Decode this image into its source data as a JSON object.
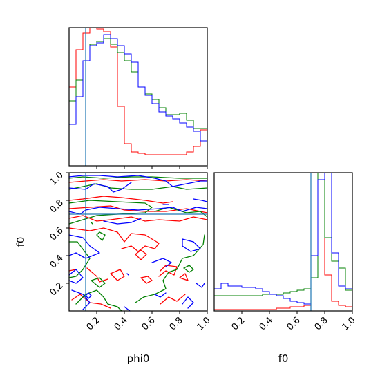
{
  "chart_data": {
    "type": "corner",
    "parameters": [
      "phi0",
      "f0"
    ],
    "xlabel_phi0": "phi0",
    "xlabel_f0": "f0",
    "ylabel_f0": "f0",
    "axis_range": [
      0,
      1
    ],
    "ticks": [
      0.2,
      0.4,
      0.6,
      0.8,
      1.0
    ],
    "tick_labels": [
      "0.2",
      "0.4",
      "0.6",
      "0.8",
      "1.0"
    ],
    "truth": {
      "phi0": 0.12,
      "f0": 0.7,
      "color": "#1f77b4"
    },
    "colors": {
      "red": "#ff0000",
      "green": "#008000",
      "blue": "#0000ff",
      "truth": "#1f77b4"
    },
    "hist_phi0": {
      "bins": 20,
      "red": [
        0.57,
        0.84,
        0.96,
        1.0,
        0.99,
        0.97,
        0.86,
        0.43,
        0.16,
        0.1,
        0.09,
        0.08,
        0.08,
        0.08,
        0.08,
        0.08,
        0.08,
        0.1,
        0.14,
        0.26
      ],
      "green": [
        0.47,
        0.62,
        0.76,
        0.88,
        0.9,
        0.92,
        0.88,
        0.82,
        0.76,
        0.68,
        0.57,
        0.52,
        0.48,
        0.42,
        0.37,
        0.37,
        0.38,
        0.33,
        0.27,
        0.27
      ],
      "blue": [
        0.3,
        0.5,
        0.76,
        0.87,
        0.89,
        0.95,
        0.92,
        0.87,
        0.81,
        0.75,
        0.57,
        0.51,
        0.45,
        0.39,
        0.36,
        0.34,
        0.31,
        0.28,
        0.25,
        0.18
      ]
    },
    "hist_f0": {
      "bins": 20,
      "red": [
        0.01,
        0.01,
        0.01,
        0.01,
        0.01,
        0.01,
        0.01,
        0.01,
        0.01,
        0.02,
        0.02,
        0.03,
        0.03,
        0.04,
        1.0,
        1.0,
        0.26,
        0.07,
        0.04,
        0.03
      ],
      "green": [
        0.11,
        0.11,
        0.11,
        0.11,
        0.11,
        0.11,
        0.11,
        0.12,
        0.12,
        0.12,
        0.13,
        0.14,
        0.15,
        0.16,
        0.24,
        1.0,
        0.53,
        0.36,
        0.31,
        0.15
      ],
      "blue": [
        0.16,
        0.2,
        0.18,
        0.18,
        0.17,
        0.17,
        0.16,
        0.14,
        0.12,
        0.11,
        0.09,
        0.07,
        0.06,
        0.05,
        0.4,
        0.95,
        1.0,
        0.42,
        0.18,
        0.16
      ]
    },
    "contours": {
      "red": [
        [
          [
            0.0,
            0.93
          ],
          [
            0.12,
            0.94
          ],
          [
            0.25,
            0.95
          ],
          [
            0.38,
            0.94
          ],
          [
            0.55,
            0.95
          ],
          [
            0.7,
            0.94
          ],
          [
            0.85,
            0.95
          ],
          [
            1.0,
            0.94
          ]
        ],
        [
          [
            0.0,
            0.8
          ],
          [
            0.1,
            0.81
          ],
          [
            0.25,
            0.83
          ],
          [
            0.38,
            0.82
          ],
          [
            0.55,
            0.8
          ],
          [
            0.68,
            0.78
          ],
          [
            0.75,
            0.79
          ]
        ],
        [
          [
            0.0,
            0.74
          ],
          [
            0.15,
            0.75
          ],
          [
            0.3,
            0.76
          ],
          [
            0.4,
            0.73
          ],
          [
            0.55,
            0.72
          ],
          [
            0.7,
            0.72
          ],
          [
            0.85,
            0.74
          ],
          [
            1.0,
            0.71
          ]
        ],
        [
          [
            0.0,
            0.67
          ],
          [
            0.1,
            0.69
          ],
          [
            0.2,
            0.65
          ],
          [
            0.3,
            0.66
          ],
          [
            0.45,
            0.68
          ],
          [
            0.55,
            0.65
          ],
          [
            0.65,
            0.66
          ],
          [
            0.8,
            0.65
          ],
          [
            0.9,
            0.68
          ],
          [
            1.0,
            0.66
          ]
        ],
        [
          [
            0.0,
            0.6
          ],
          [
            0.15,
            0.58
          ],
          [
            0.25,
            0.6
          ],
          [
            0.35,
            0.57
          ],
          [
            0.4,
            0.5
          ],
          [
            0.45,
            0.56
          ],
          [
            0.55,
            0.55
          ],
          [
            0.65,
            0.49
          ],
          [
            0.62,
            0.45
          ],
          [
            0.55,
            0.47
          ],
          [
            0.5,
            0.43
          ],
          [
            0.45,
            0.47
          ],
          [
            0.38,
            0.45
          ]
        ],
        [
          [
            0.3,
            0.27
          ],
          [
            0.35,
            0.22
          ],
          [
            0.4,
            0.25
          ],
          [
            0.37,
            0.3
          ],
          [
            0.3,
            0.27
          ]
        ],
        [
          [
            0.13,
            0.31
          ],
          [
            0.2,
            0.25
          ],
          [
            0.22,
            0.21
          ],
          [
            0.28,
            0.23
          ]
        ],
        [
          [
            0.02,
            0.08
          ],
          [
            0.08,
            0.12
          ],
          [
            0.15,
            0.06
          ],
          [
            0.23,
            0.05
          ],
          [
            0.3,
            0.02
          ]
        ],
        [
          [
            0.52,
            0.24
          ],
          [
            0.56,
            0.2
          ],
          [
            0.6,
            0.22
          ],
          [
            0.57,
            0.25
          ],
          [
            0.52,
            0.24
          ]
        ],
        [
          [
            0.65,
            0.25
          ],
          [
            0.7,
            0.29
          ],
          [
            0.76,
            0.26
          ],
          [
            0.78,
            0.32
          ],
          [
            0.7,
            0.33
          ],
          [
            0.66,
            0.29
          ]
        ],
        [
          [
            0.8,
            0.24
          ],
          [
            0.86,
            0.22
          ],
          [
            0.84,
            0.27
          ],
          [
            0.8,
            0.24
          ]
        ],
        [
          [
            0.66,
            0.05
          ],
          [
            0.72,
            0.1
          ],
          [
            0.78,
            0.07
          ],
          [
            0.84,
            0.12
          ]
        ],
        [
          [
            0.48,
            0.41
          ],
          [
            0.52,
            0.37
          ],
          [
            0.56,
            0.41
          ],
          [
            0.52,
            0.44
          ],
          [
            0.48,
            0.41
          ]
        ],
        [
          [
            0.0,
            0.29
          ],
          [
            0.05,
            0.3
          ]
        ]
      ],
      "green": [
        [
          [
            0.0,
            0.96
          ],
          [
            0.1,
            0.97
          ],
          [
            0.25,
            0.96
          ],
          [
            0.45,
            0.97
          ],
          [
            0.6,
            0.97
          ],
          [
            0.8,
            0.96
          ],
          [
            1.0,
            0.96
          ]
        ],
        [
          [
            0.0,
            0.88
          ],
          [
            0.1,
            0.9
          ],
          [
            0.2,
            0.92
          ],
          [
            0.3,
            0.89
          ],
          [
            0.45,
            0.88
          ],
          [
            0.6,
            0.88
          ],
          [
            0.75,
            0.9
          ],
          [
            0.85,
            0.88
          ],
          [
            1.0,
            0.89
          ]
        ],
        [
          [
            0.0,
            0.78
          ],
          [
            0.15,
            0.8
          ],
          [
            0.35,
            0.79
          ],
          [
            0.55,
            0.78
          ],
          [
            0.6,
            0.75
          ],
          [
            0.55,
            0.71
          ],
          [
            0.35,
            0.7
          ],
          [
            0.2,
            0.69
          ],
          [
            0.1,
            0.66
          ],
          [
            0.0,
            0.63
          ]
        ],
        [
          [
            0.62,
            0.72
          ],
          [
            0.72,
            0.75
          ],
          [
            0.85,
            0.71
          ],
          [
            0.95,
            0.72
          ],
          [
            1.0,
            0.68
          ]
        ],
        [
          [
            0.98,
            0.55
          ],
          [
            0.97,
            0.48
          ],
          [
            0.9,
            0.4
          ],
          [
            0.82,
            0.38
          ],
          [
            0.78,
            0.3
          ],
          [
            0.72,
            0.28
          ],
          [
            0.68,
            0.22
          ],
          [
            0.7,
            0.16
          ],
          [
            0.62,
            0.12
          ],
          [
            0.54,
            0.1
          ],
          [
            0.48,
            0.06
          ]
        ],
        [
          [
            0.0,
            0.5
          ],
          [
            0.06,
            0.5
          ],
          [
            0.12,
            0.42
          ],
          [
            0.15,
            0.38
          ],
          [
            0.1,
            0.3
          ],
          [
            0.05,
            0.25
          ],
          [
            0.0,
            0.24
          ]
        ],
        [
          [
            0.05,
            0.05
          ],
          [
            0.12,
            0.12
          ],
          [
            0.2,
            0.15
          ],
          [
            0.25,
            0.1
          ],
          [
            0.28,
            0.05
          ],
          [
            0.35,
            0.03
          ],
          [
            0.38,
            0.0
          ]
        ],
        [
          [
            0.16,
            0.22
          ],
          [
            0.22,
            0.17
          ],
          [
            0.26,
            0.2
          ],
          [
            0.22,
            0.24
          ],
          [
            0.16,
            0.22
          ]
        ],
        [
          [
            0.2,
            0.55
          ],
          [
            0.24,
            0.51
          ],
          [
            0.26,
            0.55
          ],
          [
            0.22,
            0.57
          ],
          [
            0.2,
            0.55
          ]
        ],
        [
          [
            0.83,
            0.31
          ],
          [
            0.87,
            0.33
          ],
          [
            0.9,
            0.3
          ],
          [
            0.87,
            0.28
          ],
          [
            0.83,
            0.31
          ]
        ],
        [
          [
            0.16,
            0.64
          ],
          [
            0.17,
            0.63
          ]
        ]
      ],
      "blue": [
        [
          [
            0.0,
            0.97
          ],
          [
            0.1,
            0.98
          ],
          [
            0.22,
            0.98
          ],
          [
            0.35,
            0.97
          ],
          [
            0.5,
            0.98
          ],
          [
            0.62,
            0.96
          ],
          [
            0.7,
            0.94
          ],
          [
            0.75,
            0.9
          ],
          [
            0.85,
            0.92
          ],
          [
            0.95,
            0.94
          ],
          [
            1.0,
            0.94
          ]
        ],
        [
          [
            0.0,
            0.89
          ],
          [
            0.12,
            0.88
          ],
          [
            0.18,
            0.92
          ],
          [
            0.28,
            0.9
          ],
          [
            0.32,
            0.86
          ],
          [
            0.38,
            0.88
          ],
          [
            0.45,
            0.93
          ]
        ],
        [
          [
            0.0,
            0.72
          ],
          [
            0.08,
            0.7
          ],
          [
            0.12,
            0.73
          ],
          [
            0.22,
            0.75
          ],
          [
            0.35,
            0.74
          ],
          [
            0.5,
            0.73
          ],
          [
            0.65,
            0.74
          ],
          [
            0.75,
            0.75
          ],
          [
            0.82,
            0.72
          ],
          [
            0.92,
            0.75
          ],
          [
            1.0,
            0.74
          ]
        ],
        [
          [
            0.25,
            0.65
          ],
          [
            0.35,
            0.63
          ],
          [
            0.45,
            0.64
          ],
          [
            0.52,
            0.67
          ]
        ],
        [
          [
            0.9,
            0.81
          ],
          [
            0.96,
            0.8
          ],
          [
            1.0,
            0.79
          ]
        ],
        [
          [
            0.68,
            0.77
          ],
          [
            0.72,
            0.77
          ]
        ],
        [
          [
            0.0,
            0.55
          ],
          [
            0.1,
            0.53
          ],
          [
            0.15,
            0.47
          ],
          [
            0.22,
            0.42
          ],
          [
            0.12,
            0.38
          ],
          [
            0.05,
            0.42
          ],
          [
            0.0,
            0.4
          ]
        ],
        [
          [
            0.0,
            0.26
          ],
          [
            0.05,
            0.3
          ],
          [
            0.1,
            0.24
          ],
          [
            0.05,
            0.2
          ],
          [
            0.0,
            0.22
          ]
        ],
        [
          [
            0.02,
            0.15
          ],
          [
            0.1,
            0.12
          ],
          [
            0.15,
            0.06
          ],
          [
            0.1,
            0.01
          ]
        ],
        [
          [
            0.82,
            0.52
          ],
          [
            0.9,
            0.5
          ],
          [
            0.95,
            0.45
          ],
          [
            0.88,
            0.43
          ],
          [
            0.82,
            0.47
          ],
          [
            0.82,
            0.52
          ]
        ],
        [
          [
            0.6,
            0.35
          ],
          [
            0.68,
            0.38
          ],
          [
            0.74,
            0.35
          ],
          [
            0.7,
            0.32
          ]
        ],
        [
          [
            0.92,
            0.2
          ],
          [
            0.96,
            0.17
          ],
          [
            0.98,
            0.2
          ]
        ],
        [
          [
            0.82,
            0.05
          ],
          [
            0.86,
            0.1
          ],
          [
            0.9,
            0.06
          ],
          [
            0.86,
            0.02
          ]
        ],
        [
          [
            0.62,
            0.12
          ],
          [
            0.66,
            0.1
          ],
          [
            0.7,
            0.13
          ]
        ],
        [
          [
            0.42,
            0.27
          ],
          [
            0.43,
            0.26
          ]
        ],
        [
          [
            0.12,
            0.11
          ],
          [
            0.14,
            0.09
          ],
          [
            0.16,
            0.11
          ],
          [
            0.14,
            0.13
          ],
          [
            0.12,
            0.11
          ]
        ],
        [
          [
            0.4,
            0.03
          ],
          [
            0.44,
            0.0
          ]
        ]
      ]
    }
  }
}
